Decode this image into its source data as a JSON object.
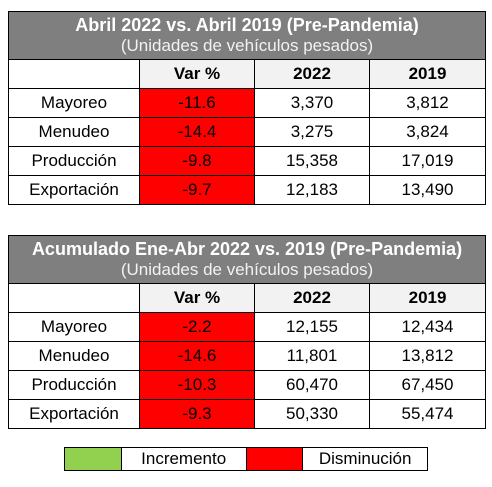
{
  "table1": {
    "title": "Abril 2022 vs. Abril 2019 (Pre-Pandemia)",
    "subtitle": "(Unidades de vehículos pesados)",
    "headers": [
      "",
      "Var %",
      "2022",
      "2019"
    ],
    "rows": [
      {
        "label": "Mayoreo",
        "var": "-11.6",
        "y2022": "3,370",
        "y2019": "3,812"
      },
      {
        "label": "Menudeo",
        "var": "-14.4",
        "y2022": "3,275",
        "y2019": "3,824"
      },
      {
        "label": "Producción",
        "var": "-9.8",
        "y2022": "15,358",
        "y2019": "17,019"
      },
      {
        "label": "Exportación",
        "var": "-9.7",
        "y2022": "12,183",
        "y2019": "13,490"
      }
    ]
  },
  "table2": {
    "title": "Acumulado Ene-Abr 2022 vs. 2019 (Pre-Pandemia)",
    "subtitle": "(Unidades de vehículos pesados)",
    "headers": [
      "",
      "Var %",
      "2022",
      "2019"
    ],
    "rows": [
      {
        "label": "Mayoreo",
        "var": "-2.2",
        "y2022": "12,155",
        "y2019": "12,434"
      },
      {
        "label": "Menudeo",
        "var": "-14.6",
        "y2022": "11,801",
        "y2019": "13,812"
      },
      {
        "label": "Producción",
        "var": "-10.3",
        "y2022": "60,470",
        "y2019": "67,450"
      },
      {
        "label": "Exportación",
        "var": "-9.3",
        "y2022": "50,330",
        "y2019": "55,474"
      }
    ]
  },
  "legend": {
    "increase_label": "Incremento",
    "increase_color": "#92d050",
    "decrease_label": "Disminución",
    "decrease_color": "#ff0000"
  }
}
